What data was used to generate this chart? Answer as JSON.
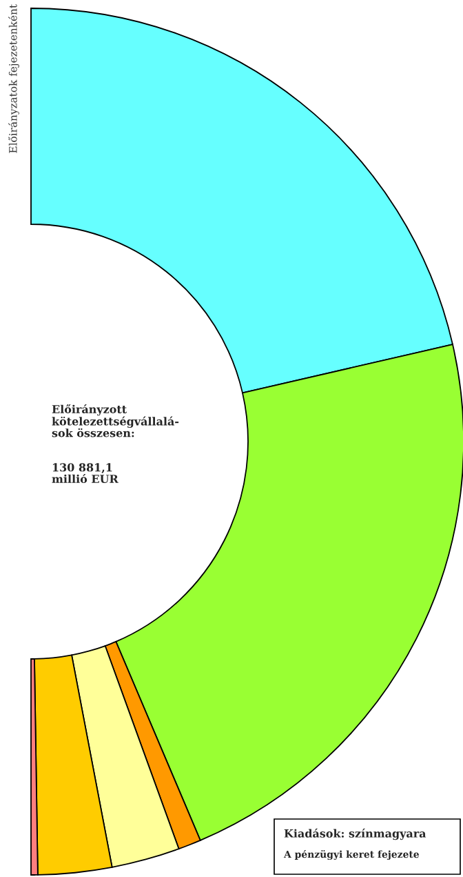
{
  "chart_data": {
    "type": "donut",
    "title": "Előirányzatok fejezetenként",
    "categories": [
      null,
      null,
      null,
      null,
      null,
      null
    ],
    "values": [
      42.8,
      44.4,
      1.7,
      5.1,
      5.5,
      0.5
    ],
    "colors": [
      "#66ffff",
      "#99ff33",
      "#ff9900",
      "#ffff99",
      "#ffcc00",
      "#ff7f7f"
    ],
    "annotations": [
      "Előirányzott\nkötelezettségvállalá-\nsok összesen:",
      "130 881,1\nmillió EUR",
      "Kiadások: színmagyara",
      "A pénzügyi keret fejezete"
    ]
  }
}
